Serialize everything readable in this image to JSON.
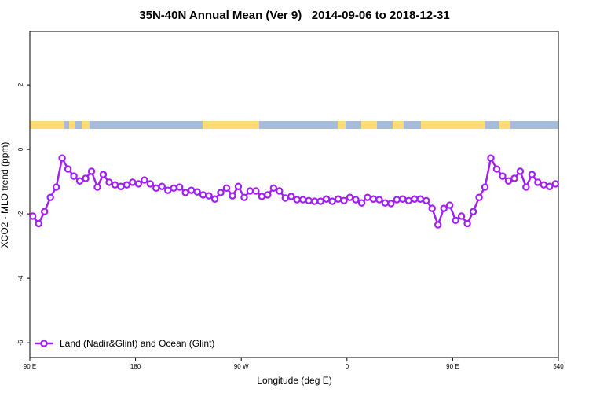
{
  "chart_data": {
    "type": "line",
    "title": "35N-40N Annual Mean (Ver 9)   2014-09-06 to 2018-12-31",
    "x_label": "Longitude (deg E)",
    "y_label": "XCO2 - MLO trend (ppm)",
    "xlim": [
      90,
      540
    ],
    "ylim": [
      -6.46,
      3.66
    ],
    "xticks": [
      {
        "value": 90,
        "label": "90 E"
      },
      180,
      {
        "value": 270,
        "label": "90 W"
      },
      {
        "value": 360,
        "label": "0"
      },
      {
        "value": 450,
        "label": "90 E"
      },
      540
    ],
    "yticks": [
      2,
      0,
      -2,
      -4,
      -6
    ],
    "legend": "bottom-left",
    "x": [
      92.5,
      97.5,
      102.5,
      107.5,
      112.5,
      117.5,
      122.5,
      127.5,
      132.5,
      137.5,
      142.5,
      147.5,
      152.5,
      157.5,
      162.5,
      167.5,
      172.5,
      177.5,
      182.5,
      187.5,
      192.5,
      197.5,
      202.5,
      207.5,
      212.5,
      217.5,
      222.5,
      227.5,
      232.5,
      237.5,
      242.5,
      247.5,
      252.5,
      257.5,
      262.5,
      267.5,
      272.5,
      277.5,
      282.5,
      287.5,
      292.5,
      297.5,
      302.5,
      307.5,
      312.5,
      317.5,
      322.5,
      327.5,
      332.5,
      337.5,
      342.5,
      347.5,
      352.5,
      357.5,
      362.5,
      367.5,
      372.5,
      377.5,
      382.5,
      387.5,
      392.5,
      397.5,
      402.5,
      407.5,
      412.5,
      417.5,
      422.5,
      427.5,
      432.5,
      437.5,
      442.5,
      447.5,
      452.5,
      457.5,
      462.5,
      467.5,
      472.5,
      477.5,
      482.5,
      487.5,
      492.5,
      497.5,
      502.5,
      507.5,
      512.5,
      517.5,
      522.5,
      527.5,
      532.5,
      537.5
    ],
    "series": [
      {
        "name": "Land (Nadir&Glint) and Ocean (Glint)",
        "color": "#a020f0",
        "values": [
          -2.07,
          -2.3,
          -1.93,
          -1.49,
          -1.17,
          -0.27,
          -0.61,
          -0.83,
          -0.98,
          -0.9,
          -0.68,
          -1.17,
          -0.78,
          -1.02,
          -1.1,
          -1.15,
          -1.1,
          -1.02,
          -1.07,
          -0.95,
          -1.07,
          -1.2,
          -1.15,
          -1.27,
          -1.2,
          -1.17,
          -1.34,
          -1.27,
          -1.32,
          -1.41,
          -1.44,
          -1.54,
          -1.34,
          -1.2,
          -1.44,
          -1.15,
          -1.49,
          -1.29,
          -1.29,
          -1.46,
          -1.41,
          -1.2,
          -1.29,
          -1.51,
          -1.46,
          -1.56,
          -1.56,
          -1.59,
          -1.61,
          -1.61,
          -1.54,
          -1.61,
          -1.54,
          -1.59,
          -1.49,
          -1.56,
          -1.66,
          -1.49,
          -1.54,
          -1.56,
          -1.66,
          -1.68,
          -1.56,
          -1.54,
          -1.59,
          -1.54,
          -1.54,
          -1.59,
          -1.83,
          -2.34,
          -1.83,
          -1.73,
          -2.2,
          -2.07,
          -2.3,
          -1.93,
          -1.49,
          -1.17,
          -0.27,
          -0.61,
          -0.83,
          -0.98,
          -0.9,
          -0.68,
          -1.17,
          -0.78,
          -1.02,
          -1.1,
          -1.15,
          -1.07
        ]
      }
    ]
  }
}
